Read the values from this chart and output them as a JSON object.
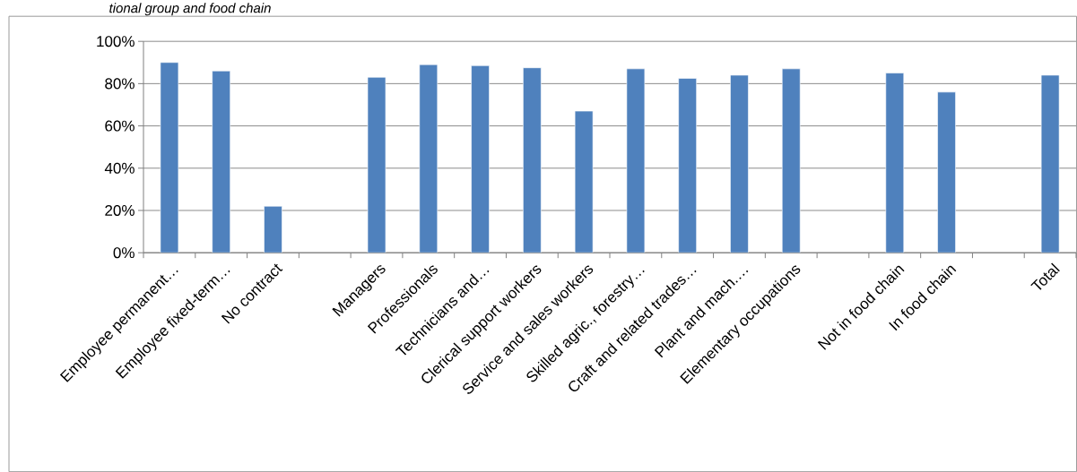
{
  "chart_data": {
    "type": "bar",
    "title": "tional group and food chain",
    "categories": [
      "Employee permanent…",
      "Employee fixed-term…",
      "No contract",
      null,
      "Managers",
      "Professionals",
      "Technicians and…",
      "Clerical support workers",
      "Service and sales workers",
      "Skilled agric., forestry…",
      "Craft and related trades…",
      "Plant and mach.…",
      "Elementary occupations",
      null,
      "Not in food chain",
      "In food chain",
      null,
      "Total"
    ],
    "values": [
      90,
      86,
      22,
      null,
      83,
      89,
      88.5,
      87.5,
      67,
      87,
      82.5,
      84,
      87,
      null,
      85,
      76,
      null,
      84
    ],
    "color": "#4f81bd",
    "ylim": [
      0,
      100
    ],
    "yticks": [
      {
        "value": 0,
        "label": "0%"
      },
      {
        "value": 20,
        "label": "20%"
      },
      {
        "value": 40,
        "label": "40%"
      },
      {
        "value": 60,
        "label": "60%"
      },
      {
        "value": 80,
        "label": "80%"
      },
      {
        "value": 100,
        "label": "100%"
      }
    ],
    "grid": "y"
  }
}
